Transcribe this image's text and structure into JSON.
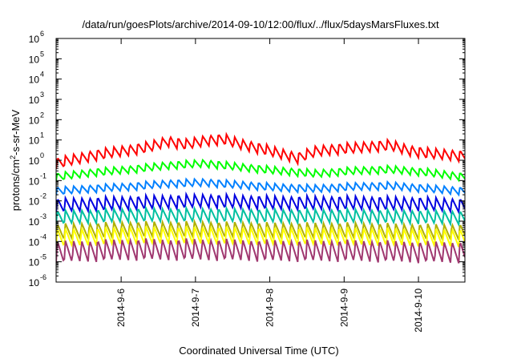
{
  "chart_data": {
    "type": "line",
    "title": "/data/run/goesPlots/archive/2014-09-10/12:00/flux/../flux/5daysMarsFluxes.txt",
    "xlabel": "Coordinated Universal Time (UTC)",
    "ylabel": "protons/cm²-s-sr-MeV",
    "yscale": "log",
    "ylim": [
      1e-06,
      1000000.0
    ],
    "xlim": [
      "2014-09-05T03:00",
      "2014-09-10T15:00"
    ],
    "grid": false,
    "legend": "none",
    "x_ticks": [
      "2014-9-6",
      "2014-9-7",
      "2014-9-8",
      "2014-9-9",
      "2014-9-10"
    ],
    "y_ticks": [
      {
        "base": "10",
        "exp": "-6"
      },
      {
        "base": "10",
        "exp": "-5"
      },
      {
        "base": "10",
        "exp": "-4"
      },
      {
        "base": "10",
        "exp": "-3"
      },
      {
        "base": "10",
        "exp": "-2"
      },
      {
        "base": "10",
        "exp": "-1"
      },
      {
        "base": "10",
        "exp": "0"
      },
      {
        "base": "10",
        "exp": "1"
      },
      {
        "base": "10",
        "exp": "2"
      },
      {
        "base": "10",
        "exp": "3"
      },
      {
        "base": "10",
        "exp": "4"
      },
      {
        "base": "10",
        "exp": "5"
      },
      {
        "base": "10",
        "exp": "6"
      }
    ],
    "series": [
      {
        "color": "#ff0000",
        "x": [
          "2014-09-05T03:00",
          "2014-09-05T09:00",
          "2014-09-05T15:00",
          "2014-09-05T21:00",
          "2014-09-06T03:00",
          "2014-09-06T09:00",
          "2014-09-06T15:00",
          "2014-09-06T21:00",
          "2014-09-07T03:00",
          "2014-09-07T09:00",
          "2014-09-07T15:00",
          "2014-09-07T21:00",
          "2014-09-08T03:00",
          "2014-09-08T09:00",
          "2014-09-08T15:00",
          "2014-09-08T21:00",
          "2014-09-09T03:00",
          "2014-09-09T09:00",
          "2014-09-09T15:00",
          "2014-09-09T21:00",
          "2014-09-10T03:00",
          "2014-09-10T09:00",
          "2014-09-10T15:00"
        ],
        "values": [
          0.7,
          1.1,
          1.7,
          2.4,
          3.2,
          4.5,
          8.5,
          6.0,
          9.0,
          11.0,
          6.0,
          3.8,
          2.2,
          1.3,
          2.8,
          3.5,
          4.0,
          4.8,
          5.5,
          3.0,
          2.2,
          1.9,
          1.6
        ]
      },
      {
        "color": "#00ff00",
        "x": [
          "2014-09-05T03:00",
          "2014-09-05T15:00",
          "2014-09-06T03:00",
          "2014-09-06T15:00",
          "2014-09-07T03:00",
          "2014-09-07T15:00",
          "2014-09-08T03:00",
          "2014-09-08T15:00",
          "2014-09-09T03:00",
          "2014-09-09T15:00",
          "2014-09-10T03:00",
          "2014-09-10T15:00"
        ],
        "values": [
          0.15,
          0.25,
          0.35,
          0.55,
          0.7,
          0.45,
          0.3,
          0.22,
          0.3,
          0.35,
          0.25,
          0.15
        ]
      },
      {
        "color": "#0080ff",
        "x": [
          "2014-09-05T03:00",
          "2014-09-05T15:00",
          "2014-09-06T03:00",
          "2014-09-06T15:00",
          "2014-09-07T03:00",
          "2014-09-07T15:00",
          "2014-09-08T03:00",
          "2014-09-08T15:00",
          "2014-09-09T03:00",
          "2014-09-09T15:00",
          "2014-09-10T03:00",
          "2014-09-10T15:00"
        ],
        "values": [
          0.03,
          0.04,
          0.05,
          0.07,
          0.08,
          0.06,
          0.045,
          0.04,
          0.05,
          0.055,
          0.04,
          0.03
        ]
      },
      {
        "color": "#0000e0",
        "x": [
          "2014-09-05T03:00",
          "2014-09-06T03:00",
          "2014-09-07T03:00",
          "2014-09-08T03:00",
          "2014-09-09T03:00",
          "2014-09-10T03:00",
          "2014-09-10T15:00"
        ],
        "values": [
          0.006,
          0.008,
          0.01,
          0.008,
          0.008,
          0.007,
          0.006
        ]
      },
      {
        "color": "#00c0a0",
        "x": [
          "2014-09-05T03:00",
          "2014-09-06T03:00",
          "2014-09-07T03:00",
          "2014-09-08T03:00",
          "2014-09-09T03:00",
          "2014-09-10T03:00",
          "2014-09-10T15:00"
        ],
        "values": [
          0.0015,
          0.002,
          0.002,
          0.0018,
          0.0018,
          0.0016,
          0.0015
        ]
      },
      {
        "color": "#b0b000",
        "x": [
          "2014-09-05T03:00",
          "2014-09-06T03:00",
          "2014-09-07T03:00",
          "2014-09-08T03:00",
          "2014-09-09T03:00",
          "2014-09-10T03:00",
          "2014-09-10T15:00"
        ],
        "values": [
          0.0003,
          0.0004,
          0.0004,
          0.00035,
          0.00035,
          0.0003,
          0.0003
        ]
      },
      {
        "color": "#ffff00",
        "x": [
          "2014-09-05T03:00",
          "2014-09-06T03:00",
          "2014-09-07T03:00",
          "2014-09-08T03:00",
          "2014-09-09T03:00",
          "2014-09-10T03:00",
          "2014-09-10T15:00"
        ],
        "values": [
          0.00015,
          0.0002,
          0.0002,
          0.00018,
          0.00018,
          0.00016,
          0.00015
        ]
      },
      {
        "color": "#a03870",
        "x": [
          "2014-09-05T03:00",
          "2014-09-06T03:00",
          "2014-09-07T03:00",
          "2014-09-08T03:00",
          "2014-09-09T03:00",
          "2014-09-10T03:00",
          "2014-09-10T15:00"
        ],
        "values": [
          3e-05,
          4e-05,
          4e-05,
          3.5e-05,
          3.5e-05,
          3e-05,
          3e-05
        ]
      }
    ]
  }
}
